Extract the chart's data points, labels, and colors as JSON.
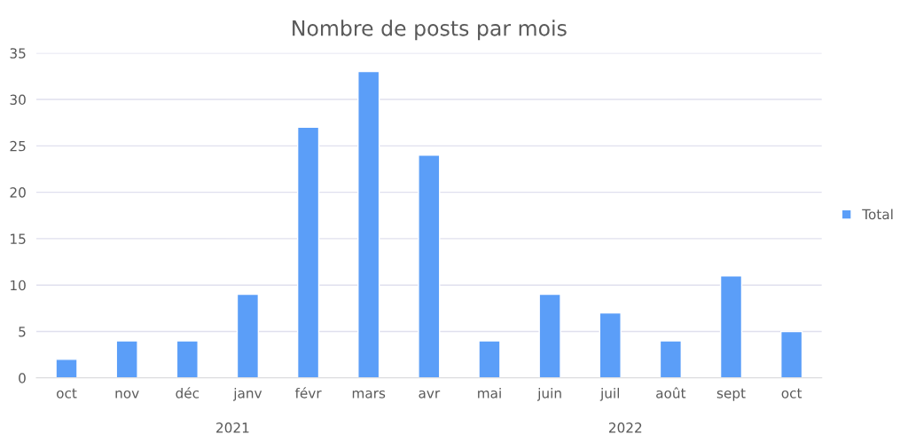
{
  "chart_data": {
    "type": "bar",
    "title": "Nombre de posts par mois",
    "categories": [
      "oct",
      "nov",
      "déc",
      "janv",
      "févr",
      "mars",
      "avr",
      "mai",
      "juin",
      "juil",
      "août",
      "sept",
      "oct"
    ],
    "series": [
      {
        "name": "Total",
        "color": "#5b9ef8",
        "values": [
          2,
          4,
          4,
          9,
          27,
          33,
          24,
          4,
          9,
          7,
          4,
          11,
          5
        ]
      }
    ],
    "ylim": [
      0,
      35
    ],
    "yticks": [
      0,
      5,
      10,
      15,
      20,
      25,
      30,
      35
    ],
    "grid": "y",
    "legend": "right",
    "annotations": [
      "2021",
      "2022"
    ]
  }
}
